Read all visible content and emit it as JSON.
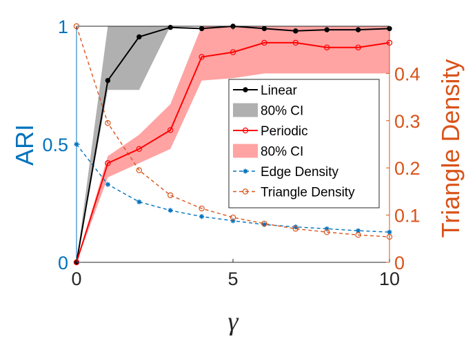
{
  "chart_data": {
    "type": "line",
    "xlabel": "γ",
    "ylabel_left": "ARI",
    "ylabel_right": "Triangle Density",
    "xlim": [
      0,
      10
    ],
    "ylim_left": [
      0,
      1
    ],
    "ylim_right": [
      0,
      0.5
    ],
    "x_ticks": [
      "0",
      "5",
      "10"
    ],
    "x_tick_values": [
      0,
      5,
      10
    ],
    "y_ticks_left": [
      "0",
      "0.5",
      "1"
    ],
    "y_tick_values_left": [
      0,
      0.5,
      1
    ],
    "y_ticks_right": [
      "0",
      "0.1",
      "0.2",
      "0.3",
      "0.4"
    ],
    "y_tick_values_right": [
      0,
      0.1,
      0.2,
      0.3,
      0.4
    ],
    "x": [
      0,
      1,
      2,
      3,
      4,
      5,
      6,
      7,
      8,
      9,
      10
    ],
    "series": [
      {
        "name": "Linear",
        "axis": "left",
        "style": "solid",
        "marker": "dot",
        "color": "#000000",
        "values": [
          0,
          0.77,
          0.955,
          0.995,
          0.99,
          1.0,
          0.99,
          0.98,
          0.985,
          0.985,
          0.99
        ]
      },
      {
        "name": "Periodic",
        "axis": "left",
        "style": "solid",
        "marker": "circle",
        "color": "#FF0000",
        "values": [
          0,
          0.42,
          0.48,
          0.56,
          0.87,
          0.89,
          0.93,
          0.93,
          0.91,
          0.91,
          0.93
        ]
      },
      {
        "name": "Edge Density",
        "axis": "right",
        "style": "dashed",
        "marker": "asterisk",
        "color": "#0072BD",
        "values": [
          0.25,
          0.165,
          0.128,
          0.11,
          0.097,
          0.088,
          0.08,
          0.075,
          0.071,
          0.067,
          0.064
        ]
      },
      {
        "name": "Triangle Density",
        "axis": "right",
        "style": "dashed",
        "marker": "circle",
        "color": "#D95319",
        "values": [
          0.5,
          0.295,
          0.195,
          0.142,
          0.114,
          0.095,
          0.082,
          0.071,
          0.064,
          0.058,
          0.054
        ]
      }
    ],
    "bands": [
      {
        "name": "80% CI",
        "of": "Linear",
        "axis": "left",
        "color": "#B0B0B0",
        "x": [
          0,
          1,
          2,
          3,
          4,
          5,
          6,
          7,
          8,
          9,
          10
        ],
        "lower": [
          0,
          0.73,
          0.73,
          1.0,
          1.0,
          1.0,
          1.0,
          1.0,
          1.0,
          1.0,
          1.0
        ],
        "upper": [
          0,
          1.0,
          1.0,
          1.0,
          1.0,
          1.0,
          1.0,
          1.0,
          1.0,
          1.0,
          1.0
        ]
      },
      {
        "name": "80% CI",
        "of": "Periodic",
        "axis": "left",
        "color": "#FFA3A3",
        "x": [
          0,
          1,
          2,
          3,
          4,
          5,
          6,
          7,
          8,
          9,
          10
        ],
        "lower": [
          0,
          0.36,
          0.42,
          0.48,
          0.77,
          0.78,
          0.8,
          0.8,
          0.8,
          0.8,
          0.8
        ],
        "upper": [
          0,
          0.45,
          0.54,
          0.67,
          1.0,
          1.0,
          1.0,
          1.0,
          1.0,
          1.0,
          1.0
        ]
      }
    ],
    "legend": {
      "position": "center-right",
      "entries": [
        "Linear",
        "80% CI",
        "Periodic",
        "80% CI",
        "Edge Density",
        "Triangle Density"
      ]
    }
  }
}
